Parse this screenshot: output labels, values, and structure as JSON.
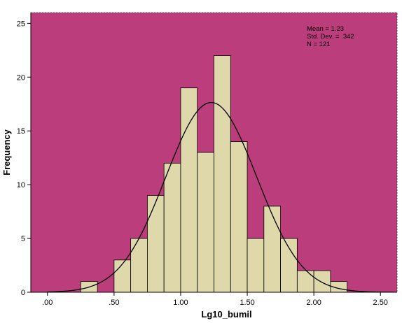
{
  "chart_data": {
    "type": "bar",
    "title": "",
    "xlabel": "Lg10_bumil",
    "ylabel": "Frequency",
    "xlim": [
      -0.125,
      2.625
    ],
    "ylim": [
      0,
      26
    ],
    "grid": false,
    "bin_width": 0.125,
    "bins": [
      {
        "start": 0.25,
        "end": 0.375,
        "count": 1
      },
      {
        "start": 0.375,
        "end": 0.5,
        "count": 0
      },
      {
        "start": 0.5,
        "end": 0.625,
        "count": 3
      },
      {
        "start": 0.625,
        "end": 0.75,
        "count": 5
      },
      {
        "start": 0.75,
        "end": 0.875,
        "count": 9
      },
      {
        "start": 0.875,
        "end": 1.0,
        "count": 12
      },
      {
        "start": 1.0,
        "end": 1.125,
        "count": 19
      },
      {
        "start": 1.125,
        "end": 1.25,
        "count": 13
      },
      {
        "start": 1.25,
        "end": 1.375,
        "count": 22
      },
      {
        "start": 1.375,
        "end": 1.5,
        "count": 14
      },
      {
        "start": 1.5,
        "end": 1.625,
        "count": 5
      },
      {
        "start": 1.625,
        "end": 1.75,
        "count": 8
      },
      {
        "start": 1.75,
        "end": 1.875,
        "count": 5
      },
      {
        "start": 1.875,
        "end": 2.0,
        "count": 2
      },
      {
        "start": 2.0,
        "end": 2.125,
        "count": 2
      },
      {
        "start": 2.125,
        "end": 2.25,
        "count": 1
      }
    ],
    "x_ticks": [
      {
        "value": 0.0,
        "label": ".00"
      },
      {
        "value": 0.5,
        "label": ".50"
      },
      {
        "value": 1.0,
        "label": "1.00"
      },
      {
        "value": 1.5,
        "label": "1.50"
      },
      {
        "value": 2.0,
        "label": "2.00"
      },
      {
        "value": 2.5,
        "label": "2.50"
      }
    ],
    "y_ticks": [
      {
        "value": 0,
        "label": "0"
      },
      {
        "value": 5,
        "label": "5"
      },
      {
        "value": 10,
        "label": "10"
      },
      {
        "value": 15,
        "label": "15"
      },
      {
        "value": 20,
        "label": "20"
      },
      {
        "value": 25,
        "label": "25"
      }
    ],
    "normal_curve": {
      "mean": 1.23,
      "sd": 0.342,
      "n": 121
    },
    "stats": {
      "mean": "Mean = 1.23",
      "sd": "Std. Dev. = .342",
      "n": "N = 121"
    },
    "legend_position": "top-right",
    "colors": {
      "plot_background": "#bc3d7b",
      "bar_fill": "#ded8ab",
      "bar_stroke": "#000000",
      "curve": "#000000"
    }
  }
}
